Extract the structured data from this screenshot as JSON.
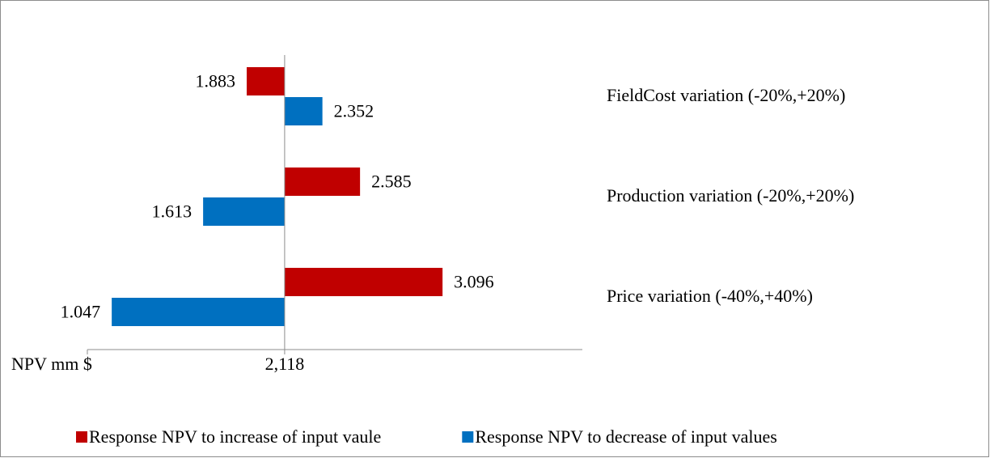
{
  "chart_data": {
    "type": "tornado",
    "categories": [
      "FieldCost variation (-20%,+20%)",
      "Production variation (-20%,+20%)",
      "Price variation (-40%,+40%)"
    ],
    "series": [
      {
        "name": "Response NPV to increase of input vaule",
        "color": "#c00000",
        "values": [
          1.883,
          2.585,
          3.096
        ]
      },
      {
        "name": "Response NPV to decrease of input values",
        "color": "#0070c0",
        "values": [
          2.352,
          1.613,
          1.047
        ]
      }
    ],
    "base": 2.118,
    "xlim": [
      0.896,
      3.962
    ],
    "xticks": [
      {
        "value": 2.118,
        "label": "2,118"
      }
    ],
    "x_label": "NPV mm $",
    "legend": "bottom"
  }
}
